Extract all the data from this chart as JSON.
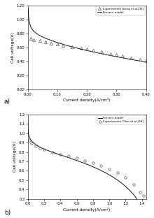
{
  "panel_a": {
    "xlabel": "Current density(A/cm²)",
    "ylabel": "Cell voltage(V)",
    "xlim": [
      0.0,
      0.4
    ],
    "ylim": [
      0.0,
      1.2
    ],
    "xticks": [
      0.0,
      0.1,
      0.2,
      0.3,
      0.4
    ],
    "yticks": [
      0.0,
      0.2,
      0.4,
      0.6,
      0.8,
      1.0,
      1.2
    ],
    "label_a": "a)",
    "legend": [
      {
        "label": "Experiments Jeong et al.[31]",
        "marker": "^",
        "linestyle": "none"
      },
      {
        "label": "Present model",
        "marker": "none",
        "linestyle": "-"
      }
    ],
    "exp_x": [
      0.01,
      0.02,
      0.04,
      0.06,
      0.08,
      0.1,
      0.12,
      0.15,
      0.18,
      0.2,
      0.22,
      0.25,
      0.28,
      0.3,
      0.32,
      0.35,
      0.38,
      0.4
    ],
    "exp_y": [
      0.73,
      0.71,
      0.695,
      0.678,
      0.662,
      0.648,
      0.634,
      0.612,
      0.592,
      0.576,
      0.56,
      0.536,
      0.512,
      0.498,
      0.482,
      0.455,
      0.428,
      0.41
    ],
    "model_x": [
      0.001,
      0.002,
      0.003,
      0.005,
      0.008,
      0.01,
      0.015,
      0.02,
      0.03,
      0.04,
      0.05,
      0.06,
      0.07,
      0.08,
      0.09,
      0.1,
      0.12,
      0.14,
      0.16,
      0.18,
      0.2,
      0.22,
      0.24,
      0.26,
      0.28,
      0.3,
      0.32,
      0.34,
      0.36,
      0.38,
      0.4
    ],
    "model_y": [
      1.16,
      1.08,
      1.03,
      0.97,
      0.92,
      0.895,
      0.86,
      0.832,
      0.798,
      0.772,
      0.751,
      0.732,
      0.715,
      0.7,
      0.685,
      0.671,
      0.645,
      0.621,
      0.599,
      0.578,
      0.558,
      0.539,
      0.521,
      0.503,
      0.486,
      0.47,
      0.454,
      0.438,
      0.423,
      0.408,
      0.393
    ]
  },
  "panel_b": {
    "xlabel": "Current density(A/cm²)",
    "ylabel": "Cell voltage(V)",
    "xlim": [
      0.0,
      1.45
    ],
    "ylim": [
      0.3,
      1.2
    ],
    "xticks": [
      0.0,
      0.2,
      0.4,
      0.6,
      0.8,
      1.0,
      1.2,
      1.4
    ],
    "yticks": [
      0.3,
      0.4,
      0.5,
      0.6,
      0.7,
      0.8,
      0.9,
      1.0,
      1.1,
      1.2
    ],
    "label_b": "b)",
    "legend": [
      {
        "label": "Present model",
        "marker": "none",
        "linestyle": "-"
      },
      {
        "label": "Experiments Chan et al.[38]",
        "marker": "o",
        "linestyle": "none"
      }
    ],
    "exp_x": [
      0.02,
      0.05,
      0.1,
      0.15,
      0.2,
      0.3,
      0.4,
      0.5,
      0.6,
      0.7,
      0.8,
      0.9,
      1.0,
      1.1,
      1.2,
      1.3,
      1.38,
      1.42
    ],
    "exp_y": [
      0.92,
      0.892,
      0.864,
      0.845,
      0.828,
      0.8,
      0.778,
      0.758,
      0.734,
      0.71,
      0.682,
      0.652,
      0.618,
      0.578,
      0.528,
      0.458,
      0.37,
      0.335
    ],
    "model_x": [
      0.001,
      0.002,
      0.005,
      0.01,
      0.02,
      0.03,
      0.05,
      0.08,
      0.1,
      0.15,
      0.2,
      0.25,
      0.3,
      0.35,
      0.4,
      0.45,
      0.5,
      0.55,
      0.6,
      0.65,
      0.7,
      0.75,
      0.8,
      0.85,
      0.9,
      0.95,
      1.0,
      1.05,
      1.1,
      1.15,
      1.2,
      1.25,
      1.3,
      1.33,
      1.35,
      1.37,
      1.39,
      1.41,
      1.43
    ],
    "model_y": [
      1.13,
      1.07,
      1.02,
      0.988,
      0.958,
      0.94,
      0.916,
      0.891,
      0.878,
      0.852,
      0.832,
      0.815,
      0.799,
      0.784,
      0.769,
      0.755,
      0.74,
      0.725,
      0.71,
      0.694,
      0.678,
      0.661,
      0.643,
      0.624,
      0.603,
      0.581,
      0.557,
      0.531,
      0.502,
      0.47,
      0.433,
      0.392,
      0.345,
      0.31,
      0.282,
      0.252,
      0.218,
      0.175,
      0.12
    ]
  }
}
